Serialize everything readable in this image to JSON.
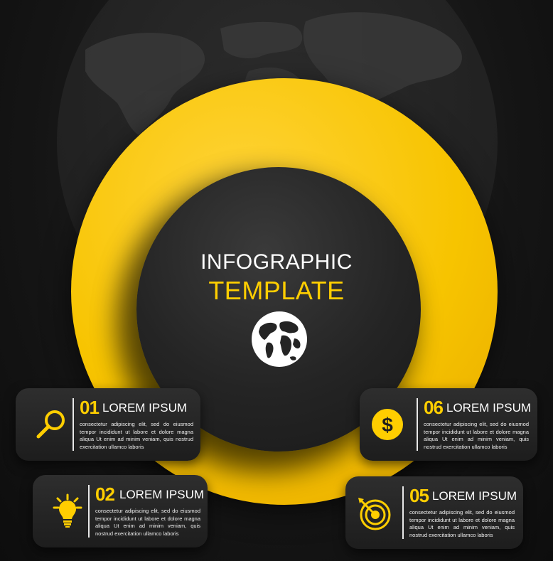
{
  "title": {
    "line1": "INFOGRAPHIC",
    "line2": "TEMPLATE"
  },
  "colors": {
    "accent": "#ffce00",
    "background": "#151515",
    "card": "#262626",
    "text": "#ffffff"
  },
  "items": [
    {
      "number": "01",
      "heading": "LOREM IPSUM",
      "icon": "magnifier-icon",
      "body": "consectetur adipiscing elit, sed do eiusmod tempor incididunt ut labore et dolore magna aliqua Ut enim ad minim veniam, quis nostrud exercitation ullamco laboris"
    },
    {
      "number": "02",
      "heading": "LOREM IPSUM",
      "icon": "lightbulb-icon",
      "body": "consectetur adipiscing elit, sed do eiusmod tempor incididunt ut labore et dolore magna aliqua Ut enim ad minim veniam, quis nostrud exercitation ullamco laboris"
    },
    {
      "number": "06",
      "heading": "LOREM IPSUM",
      "icon": "dollar-coin-icon",
      "body": "consectetur adipiscing elit, sed do eiusmod tempor incididunt ut labore et dolore magna aliqua Ut enim ad minim veniam, quis nostrud exercitation ullamco laboris"
    },
    {
      "number": "05",
      "heading": "LOREM IPSUM",
      "icon": "target-icon",
      "body": "consectetur adipiscing elit, sed do eiusmod tempor incididunt ut labore et dolore magna aliqua Ut enim ad minim veniam, quis nostrud exercitation ullamco laboris"
    }
  ]
}
